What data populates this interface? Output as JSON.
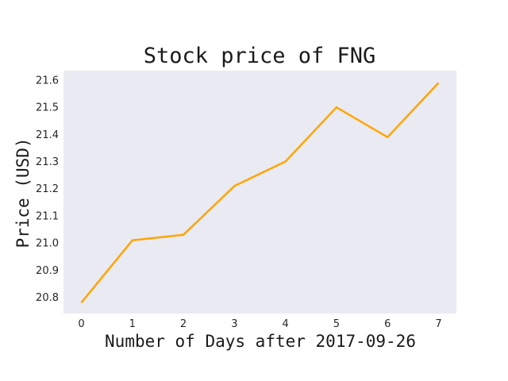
{
  "chart_data": {
    "type": "line",
    "title": "Stock price of FNG",
    "xlabel": "Number of Days after 2017-09-26",
    "ylabel": "Price (USD)",
    "x": [
      0,
      1,
      2,
      3,
      4,
      5,
      6,
      7
    ],
    "series": [
      {
        "values": [
          20.78,
          21.01,
          21.03,
          21.21,
          21.3,
          21.5,
          21.39,
          21.59
        ]
      }
    ],
    "xlim": [
      -0.35,
      7.35
    ],
    "ylim": [
      20.74,
      21.635
    ],
    "xticks": [
      "0",
      "1",
      "2",
      "3",
      "4",
      "5",
      "6",
      "7"
    ],
    "yticks": [
      "20.8",
      "20.9",
      "21.0",
      "21.1",
      "21.2",
      "21.3",
      "21.4",
      "21.5",
      "21.6"
    ],
    "grid": false,
    "legend": "none",
    "colors": {
      "line": "#FFA500",
      "plot_background": "#EAEAF2"
    }
  }
}
